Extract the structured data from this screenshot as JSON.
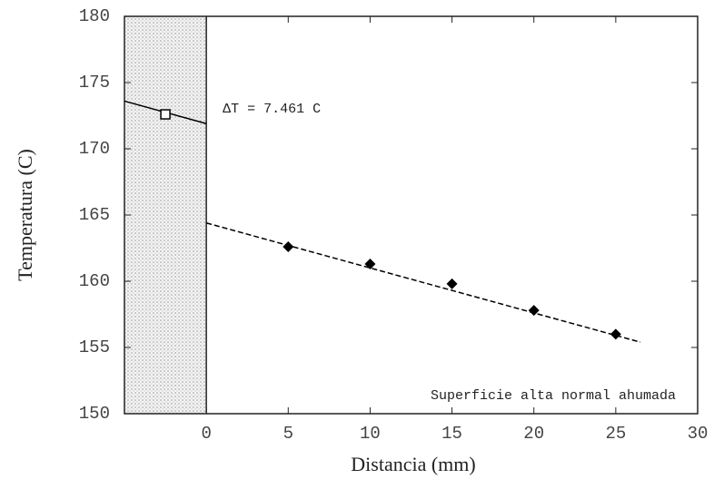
{
  "chart_data": {
    "type": "scatter",
    "xlabel": "Distancia (mm)",
    "ylabel": "Temperatura (C)",
    "x": [
      5,
      10,
      15,
      20,
      25
    ],
    "values": [
      162.6,
      161.3,
      159.8,
      157.8,
      156.0
    ],
    "fit_line": {
      "x": [
        0,
        26.5
      ],
      "values": [
        164.4,
        155.4
      ]
    },
    "wall_line": {
      "x": [
        -5,
        0
      ],
      "values": [
        173.6,
        171.9
      ]
    },
    "wall_point": {
      "x": [
        -2.5
      ],
      "values": [
        172.6
      ]
    },
    "wall": [
      -5,
      0
    ],
    "annotations": [
      "ΔT = 7.461 C",
      "Superficie alta normal ahumada"
    ],
    "xlim": [
      -5,
      30
    ],
    "xticks": [
      0,
      5,
      10,
      15,
      20,
      25,
      30
    ],
    "ylim": [
      150,
      180
    ],
    "yticks": [
      150,
      155,
      160,
      165,
      170,
      175,
      180
    ],
    "color": "#000000"
  }
}
